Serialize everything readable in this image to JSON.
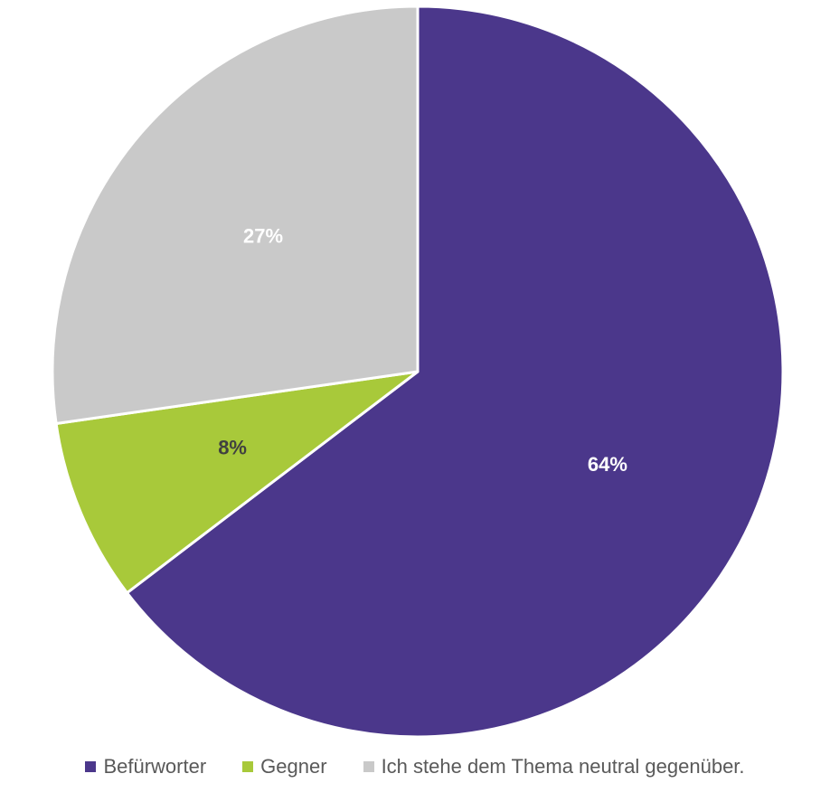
{
  "chart_data": {
    "type": "pie",
    "title": "",
    "categories": [
      "Befürworter",
      "Gegner",
      "Ich stehe dem Thema neutral gegenüber."
    ],
    "values": [
      64,
      8,
      27
    ],
    "data_labels": [
      "64%",
      "8%",
      "27%"
    ],
    "colors": [
      "#4b378b",
      "#a8c93a",
      "#c9c9c9"
    ],
    "label_colors": [
      "#ffffff",
      "#404040",
      "#ffffff"
    ],
    "start_angle_deg": 0,
    "direction": "clockwise",
    "legend_position": "bottom"
  }
}
